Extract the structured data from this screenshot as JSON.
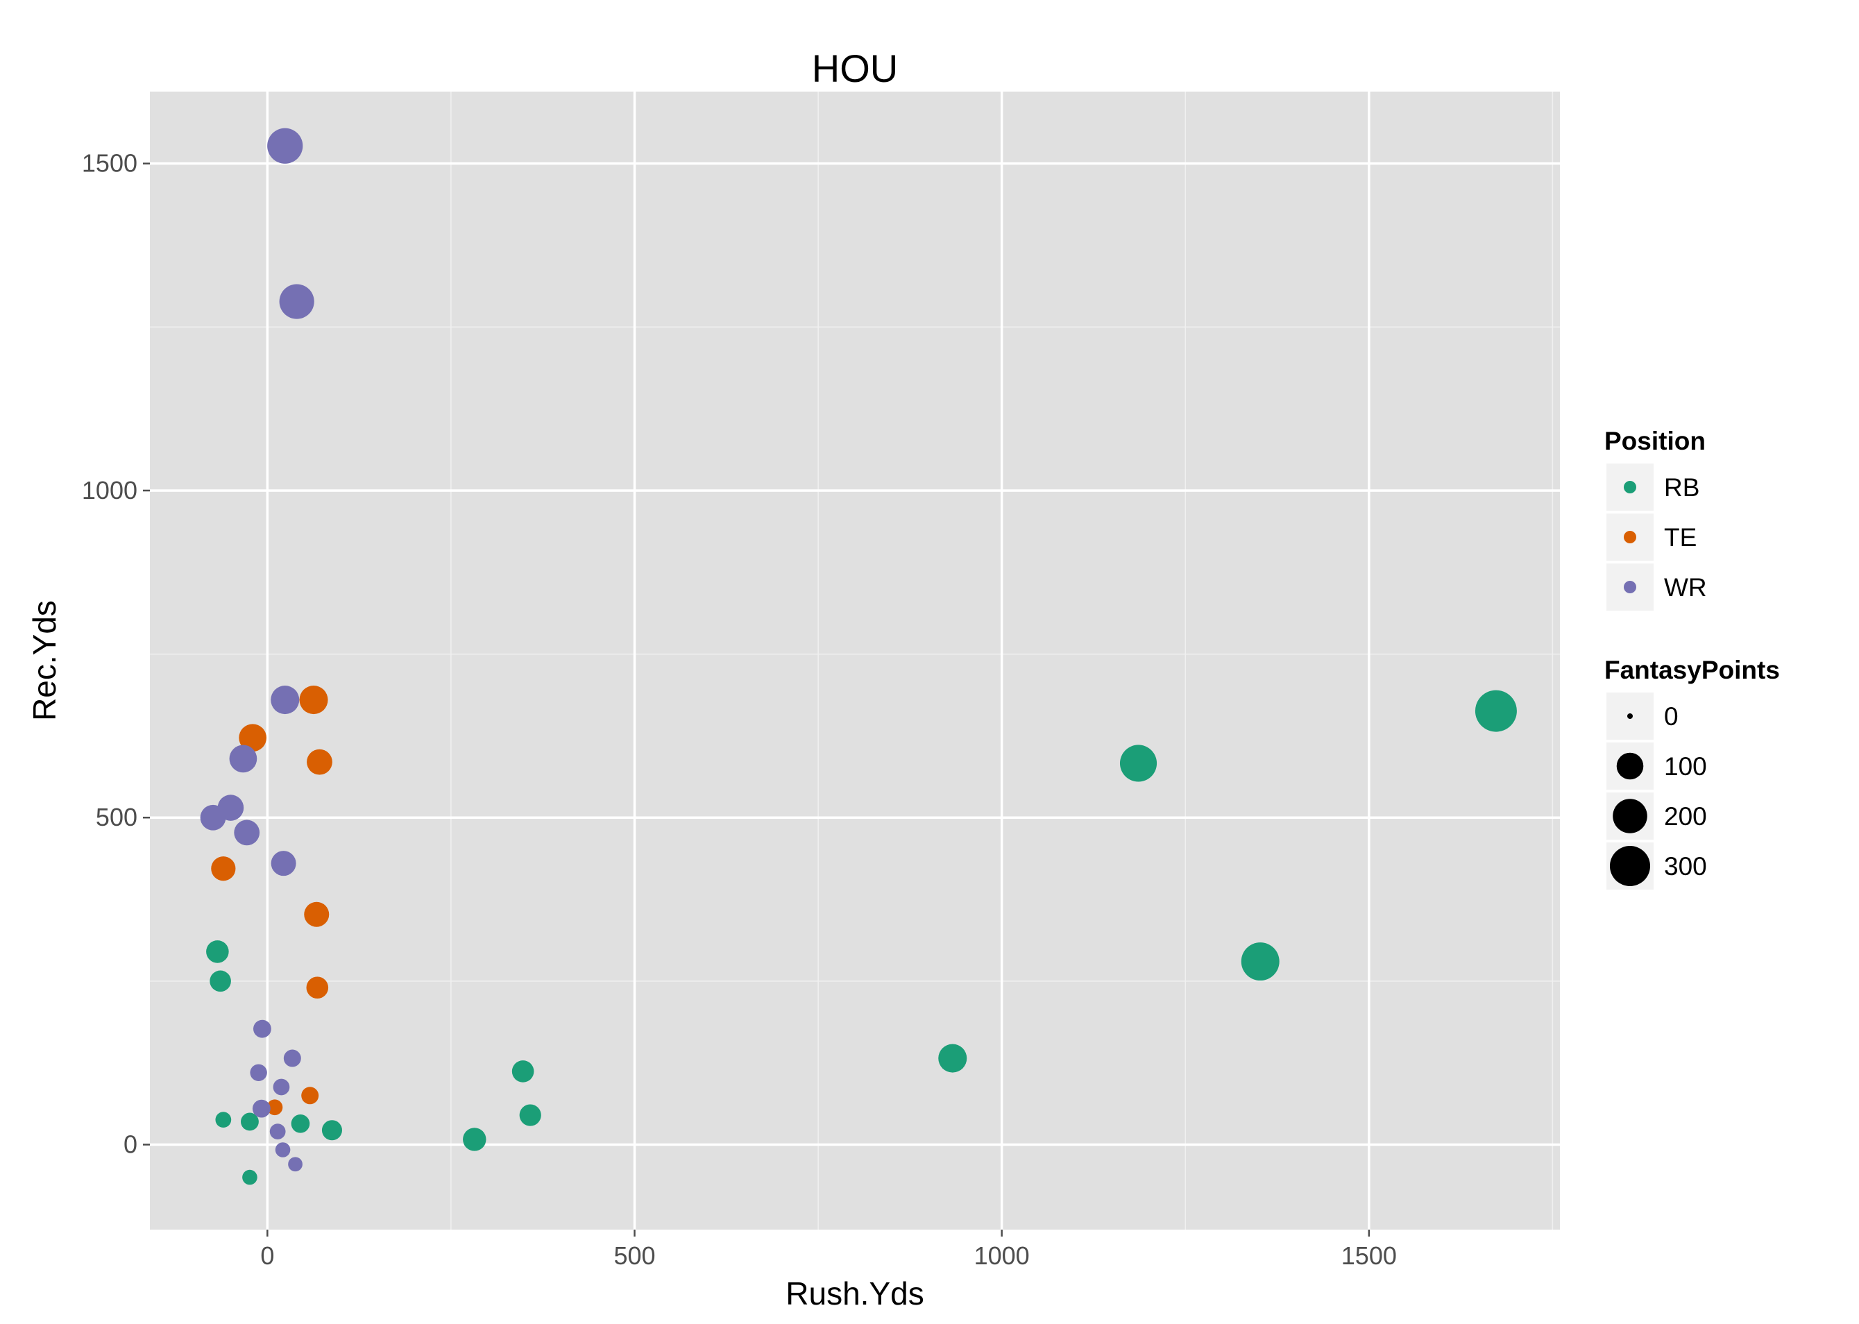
{
  "chart_data": {
    "type": "scatter",
    "title": "HOU",
    "xlabel": "Rush.Yds",
    "ylabel": "Rec.Yds",
    "xlim": [
      -160,
      1760
    ],
    "ylim": [
      -130,
      1610
    ],
    "x_ticks": [
      0,
      500,
      1000,
      1500
    ],
    "y_ticks": [
      0,
      500,
      1000,
      1500
    ],
    "grid": true,
    "background": "#e0e0e0",
    "legend_position": "right",
    "color_legend": {
      "title": "Position",
      "entries": [
        {
          "label": "RB",
          "color": "#1b9e77"
        },
        {
          "label": "TE",
          "color": "#d95f02"
        },
        {
          "label": "WR",
          "color": "#7570b3"
        }
      ]
    },
    "size_legend": {
      "title": "FantasyPoints",
      "entries": [
        {
          "label": "0",
          "value": 0
        },
        {
          "label": "100",
          "value": 100
        },
        {
          "label": "200",
          "value": 200
        },
        {
          "label": "300",
          "value": 300
        }
      ]
    },
    "series": [
      {
        "name": "RB",
        "color": "#1b9e77",
        "points": [
          {
            "x": -68,
            "y": 295,
            "size": 55
          },
          {
            "x": -64,
            "y": 250,
            "size": 45
          },
          {
            "x": -60,
            "y": 38,
            "size": 15
          },
          {
            "x": -24,
            "y": 35,
            "size": 25
          },
          {
            "x": -24,
            "y": -50,
            "size": 12
          },
          {
            "x": 45,
            "y": 32,
            "size": 28
          },
          {
            "x": 88,
            "y": 22,
            "size": 38
          },
          {
            "x": 282,
            "y": 8,
            "size": 60
          },
          {
            "x": 348,
            "y": 112,
            "size": 50
          },
          {
            "x": 358,
            "y": 45,
            "size": 48
          },
          {
            "x": 933,
            "y": 132,
            "size": 110
          },
          {
            "x": 1186,
            "y": 583,
            "size": 220
          },
          {
            "x": 1352,
            "y": 280,
            "size": 240
          },
          {
            "x": 1673,
            "y": 663,
            "size": 300
          }
        ]
      },
      {
        "name": "TE",
        "color": "#d95f02",
        "points": [
          {
            "x": -20,
            "y": 622,
            "size": 100
          },
          {
            "x": 63,
            "y": 680,
            "size": 110
          },
          {
            "x": 71,
            "y": 585,
            "size": 80
          },
          {
            "x": -60,
            "y": 422,
            "size": 70
          },
          {
            "x": 67,
            "y": 352,
            "size": 75
          },
          {
            "x": 68,
            "y": 240,
            "size": 50
          },
          {
            "x": 58,
            "y": 75,
            "size": 22
          },
          {
            "x": 10,
            "y": 57,
            "size": 15
          }
        ]
      },
      {
        "name": "WR",
        "color": "#7570b3",
        "points": [
          {
            "x": 24,
            "y": 1527,
            "size": 200
          },
          {
            "x": 40,
            "y": 1289,
            "size": 190
          },
          {
            "x": 24,
            "y": 680,
            "size": 110
          },
          {
            "x": -33,
            "y": 590,
            "size": 100
          },
          {
            "x": -50,
            "y": 515,
            "size": 85
          },
          {
            "x": -74,
            "y": 500,
            "size": 80
          },
          {
            "x": -28,
            "y": 477,
            "size": 80
          },
          {
            "x": 22,
            "y": 430,
            "size": 75
          },
          {
            "x": -7,
            "y": 177,
            "size": 25
          },
          {
            "x": 34,
            "y": 132,
            "size": 22
          },
          {
            "x": -12,
            "y": 110,
            "size": 20
          },
          {
            "x": 19,
            "y": 88,
            "size": 18
          },
          {
            "x": -8,
            "y": 55,
            "size": 25
          },
          {
            "x": 14,
            "y": 20,
            "size": 15
          },
          {
            "x": 21,
            "y": -8,
            "size": 12
          },
          {
            "x": 38,
            "y": -30,
            "size": 10
          }
        ]
      }
    ]
  }
}
